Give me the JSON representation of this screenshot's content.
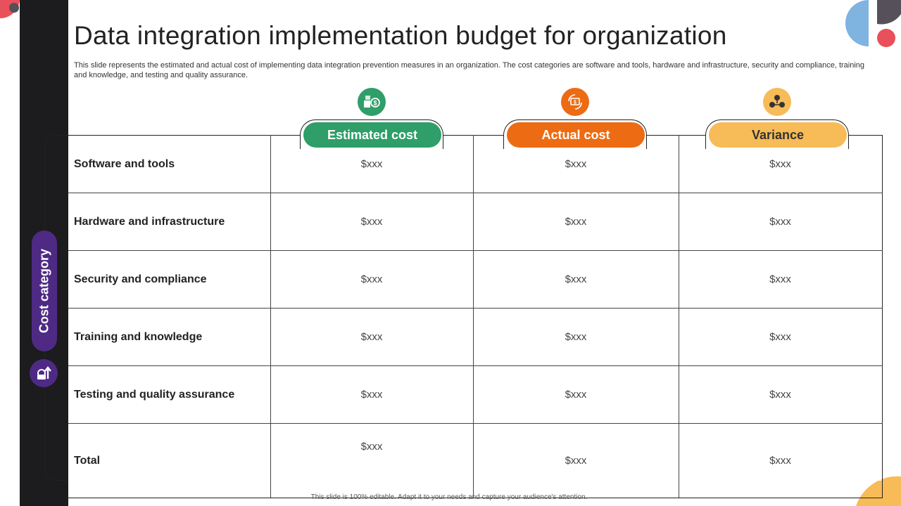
{
  "slide": {
    "title": "Data integration implementation budget for organization",
    "subtitle": "This slide represents the estimated and actual cost of implementing data integration prevention measures in an organization. The cost categories are software and tools, hardware and infrastructure, security and compliance, training and knowledge, and testing and quality assurance.",
    "footer": "This slide is 100% editable. Adapt it to your needs and capture your audience's attention."
  },
  "sidebar": {
    "label": "Cost category",
    "icon": "money-growth-icon"
  },
  "columns": [
    {
      "label": "Estimated cost",
      "color": "#2f9e68",
      "icon": "cash-icon"
    },
    {
      "label": "Actual cost",
      "color": "#ed6b12",
      "icon": "money-exchange-icon"
    },
    {
      "label": "Variance",
      "color": "#f7bb57",
      "icon": "distribution-icon"
    }
  ],
  "rows": [
    {
      "category": "Software  and tools",
      "values": [
        "$xxx",
        "$xxx",
        "$xxx"
      ]
    },
    {
      "category": "Hardware and infrastructure",
      "values": [
        "$xxx",
        "$xxx",
        "$xxx"
      ]
    },
    {
      "category": "Security  and compliance",
      "values": [
        "$xxx",
        "$xxx",
        "$xxx"
      ]
    },
    {
      "category": "Training and knowledge",
      "values": [
        "$xxx",
        "$xxx",
        "$xxx"
      ]
    },
    {
      "category": "Testing and quality assurance",
      "values": [
        "$xxx",
        "$xxx",
        "$xxx"
      ]
    },
    {
      "category": "Total",
      "values": [
        "$xxx",
        "$xxx",
        "$xxx"
      ]
    }
  ],
  "colors": {
    "dark_bar": "#1c1b1d",
    "purple": "#4e2a84",
    "blue": "#7fb3e0",
    "red": "#e8505b",
    "yellow": "#f7bb57"
  }
}
